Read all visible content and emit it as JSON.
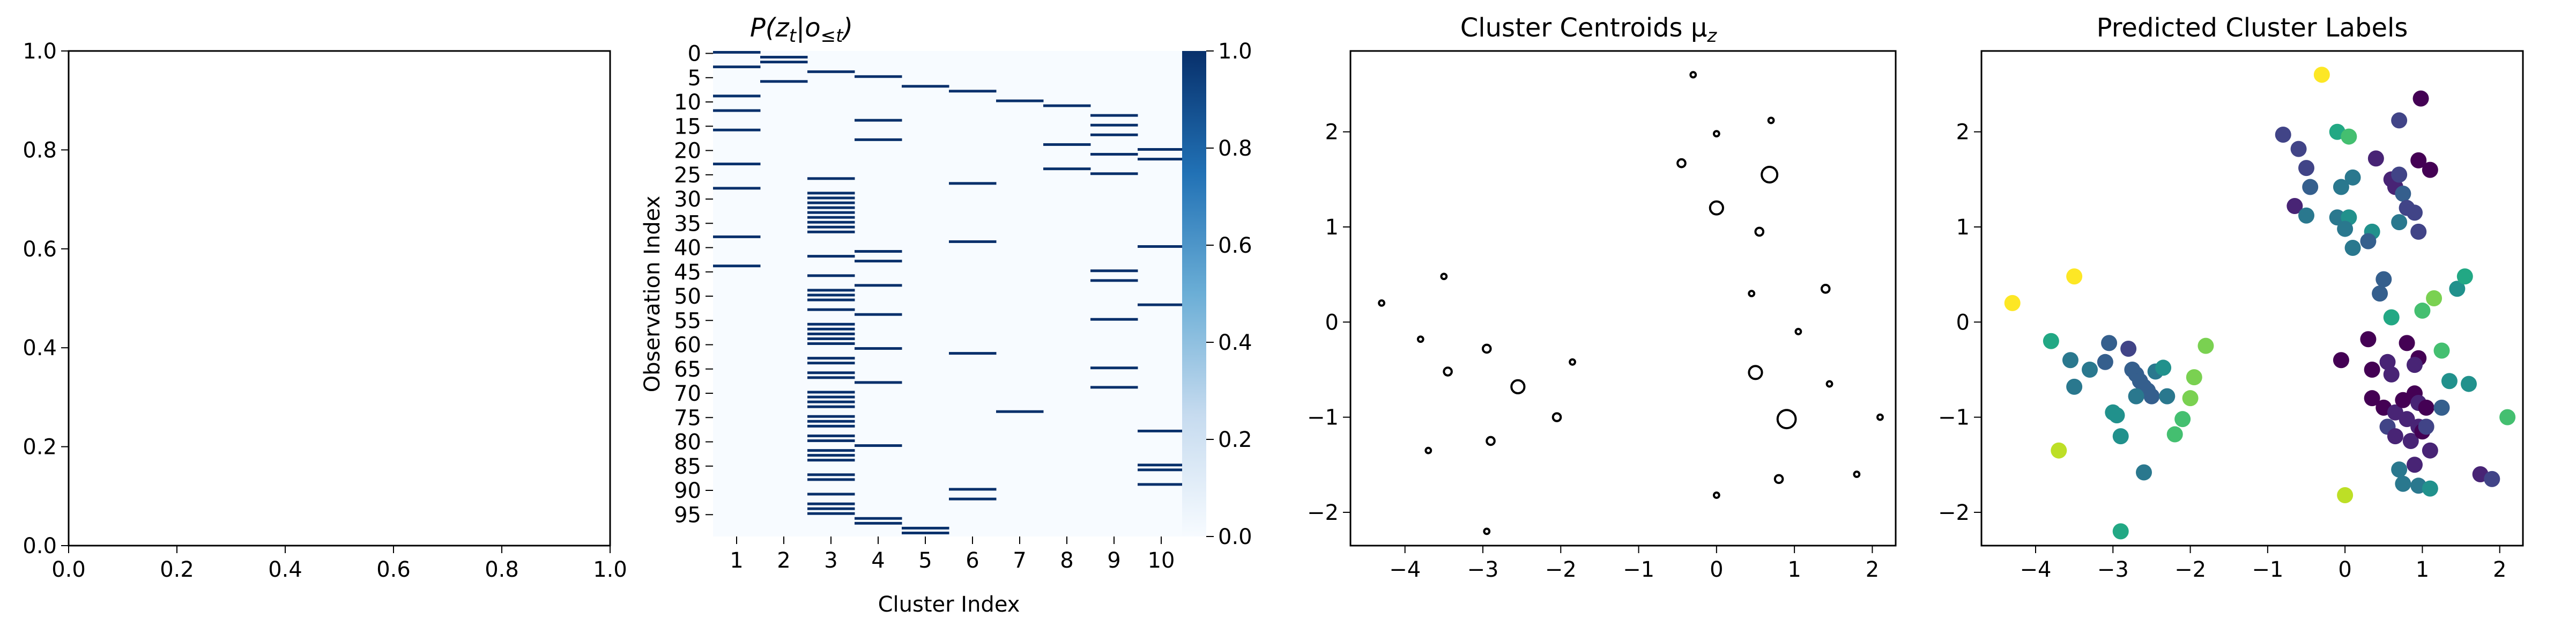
{
  "colors": {
    "heatmap_low": "#f7fbff",
    "heatmap_high": "#08306b",
    "centroid_stroke": "#000000",
    "label_palette": [
      "#440154",
      "#482475",
      "#414487",
      "#355f8d",
      "#2a788e",
      "#21918c",
      "#22a884",
      "#44bf70",
      "#7ad151",
      "#bddf26",
      "#fde725"
    ]
  },
  "chart_data": [
    {
      "type": "scatter",
      "title": "",
      "xlabel": "",
      "ylabel": "",
      "xlim": [
        0,
        1
      ],
      "ylim": [
        0,
        1
      ],
      "xticks": [
        "0.0",
        "0.2",
        "0.4",
        "0.6",
        "0.8",
        "1.0"
      ],
      "yticks": [
        "0.0",
        "0.2",
        "0.4",
        "0.6",
        "0.8",
        "1.0"
      ],
      "points": []
    },
    {
      "type": "heatmap",
      "title": "P(zₜ|o≤ₜ)",
      "title_main": "P(z",
      "title_sub1": "t",
      "title_mid": "|o",
      "title_sub2": "≤t",
      "title_end": ")",
      "xlabel": "Cluster Index",
      "ylabel": "Observation Index",
      "n_rows": 100,
      "x_categories": [
        "1",
        "2",
        "3",
        "4",
        "5",
        "6",
        "7",
        "8",
        "9",
        "10"
      ],
      "yticks": [
        "0",
        "5",
        "10",
        "15",
        "20",
        "25",
        "30",
        "35",
        "40",
        "45",
        "50",
        "55",
        "60",
        "65",
        "70",
        "75",
        "80",
        "85",
        "90",
        "95"
      ],
      "colorbar_ticks": [
        "0.0",
        "0.2",
        "0.4",
        "0.6",
        "0.8",
        "1.0"
      ],
      "colorbar_range": [
        0,
        1
      ],
      "assignments": [
        1,
        2,
        2,
        1,
        3,
        4,
        2,
        5,
        6,
        1,
        7,
        8,
        1,
        9,
        4,
        9,
        1,
        9,
        4,
        8,
        10,
        9,
        10,
        1,
        8,
        9,
        3,
        6,
        1,
        3,
        3,
        3,
        3,
        3,
        3,
        3,
        3,
        3,
        1,
        6,
        10,
        4,
        3,
        4,
        1,
        9,
        3,
        9,
        4,
        3,
        3,
        3,
        10,
        3,
        4,
        9,
        3,
        3,
        3,
        3,
        3,
        4,
        6,
        3,
        3,
        9,
        3,
        3,
        4,
        9,
        3,
        3,
        3,
        3,
        7,
        3,
        3,
        3,
        10,
        3,
        3,
        4,
        3,
        3,
        3,
        10,
        10,
        3,
        3,
        10,
        6,
        3,
        6,
        3,
        3,
        3,
        4,
        4,
        5,
        5
      ]
    },
    {
      "type": "scatter",
      "title": "Cluster Centroids μ",
      "title_sub": "z",
      "xlabel": "",
      "ylabel": "",
      "xlim": [
        -4.7,
        2.3
      ],
      "ylim": [
        -2.35,
        2.85
      ],
      "xticks": [
        -4,
        -3,
        -2,
        -1,
        0,
        1,
        2
      ],
      "yticks": [
        -2,
        -1,
        0,
        1,
        2
      ],
      "marker": "hollow circle, size proportional to cluster weight",
      "points": [
        {
          "x": -4.3,
          "y": 0.2,
          "s": 1
        },
        {
          "x": -3.8,
          "y": -0.18,
          "s": 1
        },
        {
          "x": -3.7,
          "y": -1.35,
          "s": 1
        },
        {
          "x": -3.5,
          "y": 0.48,
          "s": 1
        },
        {
          "x": -3.45,
          "y": -0.52,
          "s": 2
        },
        {
          "x": -2.95,
          "y": -0.28,
          "s": 2
        },
        {
          "x": -2.9,
          "y": -1.25,
          "s": 2
        },
        {
          "x": -2.95,
          "y": -2.2,
          "s": 1
        },
        {
          "x": -2.55,
          "y": -0.68,
          "s": 4
        },
        {
          "x": -2.05,
          "y": -1.0,
          "s": 2
        },
        {
          "x": -1.85,
          "y": -0.42,
          "s": 1
        },
        {
          "x": -0.45,
          "y": 1.67,
          "s": 2
        },
        {
          "x": -0.3,
          "y": 2.6,
          "s": 1
        },
        {
          "x": 0.0,
          "y": 1.98,
          "s": 1
        },
        {
          "x": 0.0,
          "y": 1.2,
          "s": 4
        },
        {
          "x": 0.0,
          "y": -1.82,
          "s": 1
        },
        {
          "x": 0.45,
          "y": 0.3,
          "s": 1
        },
        {
          "x": 0.5,
          "y": -0.53,
          "s": 4
        },
        {
          "x": 0.55,
          "y": 0.95,
          "s": 2
        },
        {
          "x": 0.68,
          "y": 1.55,
          "s": 5
        },
        {
          "x": 0.7,
          "y": 2.12,
          "s": 1
        },
        {
          "x": 0.8,
          "y": -1.65,
          "s": 2
        },
        {
          "x": 0.9,
          "y": -1.02,
          "s": 6
        },
        {
          "x": 1.05,
          "y": -0.1,
          "s": 1
        },
        {
          "x": 1.4,
          "y": 0.35,
          "s": 2
        },
        {
          "x": 1.45,
          "y": -0.65,
          "s": 1
        },
        {
          "x": 1.8,
          "y": -1.6,
          "s": 1
        },
        {
          "x": 2.1,
          "y": -1.0,
          "s": 1
        }
      ]
    },
    {
      "type": "scatter",
      "title": "Predicted Cluster Labels",
      "xlabel": "",
      "ylabel": "",
      "xlim": [
        -4.7,
        2.3
      ],
      "ylim": [
        -2.35,
        2.85
      ],
      "xticks": [
        -4,
        -3,
        -2,
        -1,
        0,
        1,
        2
      ],
      "yticks": [
        -2,
        -1,
        0,
        1,
        2
      ],
      "marker": "filled circle colored by predicted label (0-10)",
      "points": [
        {
          "x": -4.3,
          "y": 0.2,
          "c": 10
        },
        {
          "x": -3.5,
          "y": 0.48,
          "c": 10
        },
        {
          "x": -3.7,
          "y": -1.35,
          "c": 9
        },
        {
          "x": -3.8,
          "y": -0.2,
          "c": 6
        },
        {
          "x": -3.55,
          "y": -0.4,
          "c": 4
        },
        {
          "x": -3.5,
          "y": -0.68,
          "c": 4
        },
        {
          "x": -3.3,
          "y": -0.5,
          "c": 4
        },
        {
          "x": -3.1,
          "y": -0.42,
          "c": 3
        },
        {
          "x": -3.0,
          "y": -0.95,
          "c": 5
        },
        {
          "x": -2.95,
          "y": -0.98,
          "c": 5
        },
        {
          "x": -2.9,
          "y": -1.2,
          "c": 5
        },
        {
          "x": -3.05,
          "y": -0.22,
          "c": 3
        },
        {
          "x": -2.8,
          "y": -0.28,
          "c": 2
        },
        {
          "x": -2.75,
          "y": -0.5,
          "c": 3
        },
        {
          "x": -2.7,
          "y": -0.55,
          "c": 3
        },
        {
          "x": -2.65,
          "y": -0.62,
          "c": 3
        },
        {
          "x": -2.6,
          "y": -0.68,
          "c": 3
        },
        {
          "x": -2.55,
          "y": -0.72,
          "c": 3
        },
        {
          "x": -2.5,
          "y": -0.78,
          "c": 3
        },
        {
          "x": -2.7,
          "y": -0.78,
          "c": 4
        },
        {
          "x": -2.45,
          "y": -0.52,
          "c": 4
        },
        {
          "x": -2.35,
          "y": -0.48,
          "c": 5
        },
        {
          "x": -2.3,
          "y": -0.78,
          "c": 4
        },
        {
          "x": -2.6,
          "y": -1.58,
          "c": 4
        },
        {
          "x": -2.2,
          "y": -1.18,
          "c": 7
        },
        {
          "x": -2.1,
          "y": -1.02,
          "c": 7
        },
        {
          "x": -2.0,
          "y": -0.8,
          "c": 8
        },
        {
          "x": -1.95,
          "y": -0.58,
          "c": 8
        },
        {
          "x": -1.8,
          "y": -0.25,
          "c": 8
        },
        {
          "x": -2.9,
          "y": -2.2,
          "c": 6
        },
        {
          "x": -0.3,
          "y": 2.6,
          "c": 10
        },
        {
          "x": -0.8,
          "y": 1.97,
          "c": 2
        },
        {
          "x": -0.6,
          "y": 1.82,
          "c": 2
        },
        {
          "x": -0.5,
          "y": 1.62,
          "c": 2
        },
        {
          "x": -0.45,
          "y": 1.42,
          "c": 3
        },
        {
          "x": -0.65,
          "y": 1.22,
          "c": 1
        },
        {
          "x": -0.5,
          "y": 1.12,
          "c": 4
        },
        {
          "x": -0.1,
          "y": 2.0,
          "c": 6
        },
        {
          "x": 0.05,
          "y": 1.95,
          "c": 7
        },
        {
          "x": -0.05,
          "y": 1.42,
          "c": 4
        },
        {
          "x": 0.1,
          "y": 1.52,
          "c": 4
        },
        {
          "x": -0.1,
          "y": 1.1,
          "c": 4
        },
        {
          "x": 0.05,
          "y": 1.1,
          "c": 5
        },
        {
          "x": 0.0,
          "y": 0.98,
          "c": 4
        },
        {
          "x": 0.1,
          "y": 0.78,
          "c": 4
        },
        {
          "x": 0.35,
          "y": 0.95,
          "c": 5
        },
        {
          "x": 0.3,
          "y": 0.85,
          "c": 3
        },
        {
          "x": 0.6,
          "y": 1.5,
          "c": 1
        },
        {
          "x": 0.65,
          "y": 1.42,
          "c": 1
        },
        {
          "x": 0.7,
          "y": 1.55,
          "c": 2
        },
        {
          "x": 0.75,
          "y": 1.35,
          "c": 3
        },
        {
          "x": 0.8,
          "y": 1.2,
          "c": 2
        },
        {
          "x": 0.7,
          "y": 1.05,
          "c": 4
        },
        {
          "x": 0.9,
          "y": 1.15,
          "c": 2
        },
        {
          "x": 0.95,
          "y": 0.95,
          "c": 2
        },
        {
          "x": 0.98,
          "y": 2.35,
          "c": 0
        },
        {
          "x": 0.7,
          "y": 2.12,
          "c": 2
        },
        {
          "x": 0.95,
          "y": 1.7,
          "c": 0
        },
        {
          "x": 1.1,
          "y": 1.6,
          "c": 0
        },
        {
          "x": 0.4,
          "y": 1.72,
          "c": 1
        },
        {
          "x": 0.5,
          "y": 0.45,
          "c": 3
        },
        {
          "x": 0.45,
          "y": 0.3,
          "c": 3
        },
        {
          "x": 0.6,
          "y": 0.05,
          "c": 6
        },
        {
          "x": -0.05,
          "y": -0.4,
          "c": 0
        },
        {
          "x": 0.3,
          "y": -0.18,
          "c": 0
        },
        {
          "x": 0.35,
          "y": -0.5,
          "c": 0
        },
        {
          "x": 0.55,
          "y": -0.42,
          "c": 1
        },
        {
          "x": 0.6,
          "y": -0.55,
          "c": 1
        },
        {
          "x": 0.8,
          "y": -0.22,
          "c": 0
        },
        {
          "x": 0.95,
          "y": -0.38,
          "c": 0
        },
        {
          "x": 0.9,
          "y": -0.45,
          "c": 1
        },
        {
          "x": 0.35,
          "y": -0.8,
          "c": 0
        },
        {
          "x": 0.5,
          "y": -0.9,
          "c": 0
        },
        {
          "x": 0.65,
          "y": -0.95,
          "c": 1
        },
        {
          "x": 0.75,
          "y": -0.82,
          "c": 0
        },
        {
          "x": 0.9,
          "y": -0.75,
          "c": 0
        },
        {
          "x": 0.95,
          "y": -0.85,
          "c": 1
        },
        {
          "x": 1.05,
          "y": -0.9,
          "c": 0
        },
        {
          "x": 0.8,
          "y": -1.02,
          "c": 1
        },
        {
          "x": 0.95,
          "y": -1.1,
          "c": 1
        },
        {
          "x": 0.55,
          "y": -1.1,
          "c": 2
        },
        {
          "x": 0.65,
          "y": -1.2,
          "c": 1
        },
        {
          "x": 0.85,
          "y": -1.25,
          "c": 1
        },
        {
          "x": 1.0,
          "y": -1.15,
          "c": 0
        },
        {
          "x": 1.1,
          "y": -1.35,
          "c": 1
        },
        {
          "x": 1.05,
          "y": -1.1,
          "c": 2
        },
        {
          "x": 0.9,
          "y": -1.5,
          "c": 1
        },
        {
          "x": 0.7,
          "y": -1.55,
          "c": 4
        },
        {
          "x": 0.75,
          "y": -1.7,
          "c": 4
        },
        {
          "x": 0.95,
          "y": -1.72,
          "c": 4
        },
        {
          "x": 1.1,
          "y": -1.75,
          "c": 5
        },
        {
          "x": 1.0,
          "y": 0.12,
          "c": 7
        },
        {
          "x": 1.15,
          "y": 0.25,
          "c": 8
        },
        {
          "x": 1.25,
          "y": -0.3,
          "c": 7
        },
        {
          "x": 1.35,
          "y": -0.62,
          "c": 5
        },
        {
          "x": 1.45,
          "y": 0.35,
          "c": 5
        },
        {
          "x": 1.55,
          "y": 0.48,
          "c": 6
        },
        {
          "x": 1.6,
          "y": -0.65,
          "c": 5
        },
        {
          "x": 1.75,
          "y": -1.6,
          "c": 1
        },
        {
          "x": 1.9,
          "y": -1.65,
          "c": 2
        },
        {
          "x": 2.1,
          "y": -1.0,
          "c": 7
        },
        {
          "x": 0.0,
          "y": -1.82,
          "c": 9
        },
        {
          "x": 1.25,
          "y": -0.9,
          "c": 3
        }
      ]
    }
  ]
}
